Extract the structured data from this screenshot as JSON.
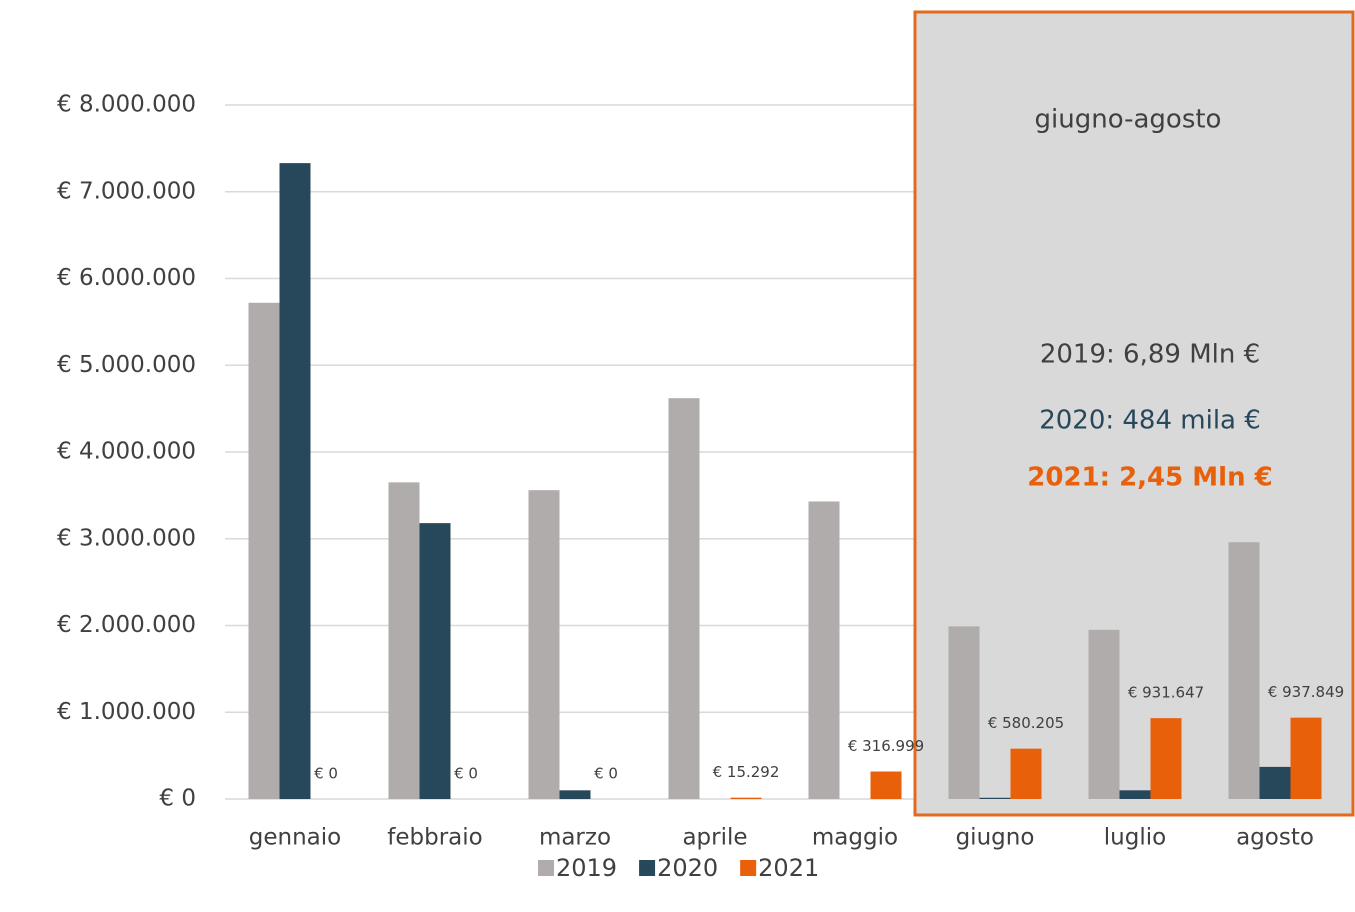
{
  "chart_data": {
    "type": "bar",
    "categories": [
      "gennaio",
      "febbraio",
      "marzo",
      "aprile",
      "maggio",
      "giugno",
      "luglio",
      "agosto"
    ],
    "series": [
      {
        "name": "2019",
        "color": "#b0acab",
        "values": [
          5720000,
          3650000,
          3560000,
          4620000,
          3430000,
          1990000,
          1950000,
          2960000
        ]
      },
      {
        "name": "2020",
        "color": "#27485a",
        "values": [
          7330000,
          3180000,
          100000,
          0,
          0,
          14000,
          100000,
          370000
        ]
      },
      {
        "name": "2021",
        "color": "#e8600a",
        "values": [
          0,
          0,
          0,
          15292,
          316999,
          580205,
          931647,
          937849
        ],
        "value_labels": [
          "€ 0",
          "€ 0",
          "€ 0",
          "€ 15.292",
          "€ 316.999",
          "€ 580.205",
          "€ 931.647",
          "€ 937.849"
        ]
      }
    ],
    "ylim": [
      0,
      8000000
    ],
    "yticks": [
      {
        "value": 0,
        "label": "€ 0"
      },
      {
        "value": 1000000,
        "label": "€ 1.000.000"
      },
      {
        "value": 2000000,
        "label": "€ 2.000.000"
      },
      {
        "value": 3000000,
        "label": "€ 3.000.000"
      },
      {
        "value": 4000000,
        "label": "€ 4.000.000"
      },
      {
        "value": 5000000,
        "label": "€ 5.000.000"
      },
      {
        "value": 6000000,
        "label": "€ 6.000.000"
      },
      {
        "value": 7000000,
        "label": "€ 7.000.000"
      },
      {
        "value": 8000000,
        "label": "€ 8.000.000"
      }
    ],
    "grid": true,
    "legend": "bottom",
    "annotations": [
      "giugno-agosto",
      "2019: 6,89 Mln €",
      "2020: 484 mila €",
      "2021: 2,45 Mln €"
    ]
  }
}
